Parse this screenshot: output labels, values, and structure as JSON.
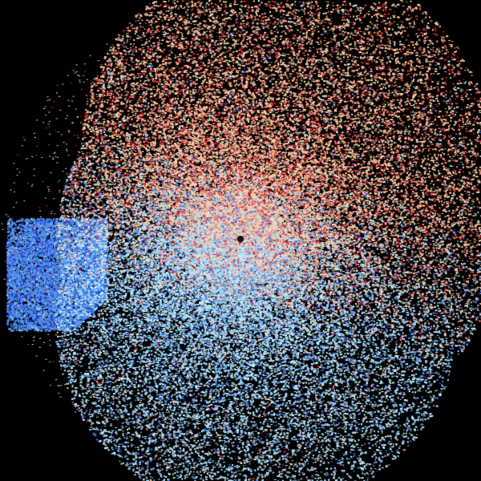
{
  "image": {
    "kind": "doppler-radar-velocity-sweep",
    "background": "#000000",
    "palette": {
      "inbound_strong": "#1f3fd8",
      "inbound": "#4f8cf0",
      "inbound_light": "#9fd8f8",
      "near_zero_light": "#c8f0ff",
      "outbound_light": "#ffd0a8",
      "outbound": "#f08868",
      "outbound_strong": "#e02838",
      "center_marker": "#111111"
    }
  }
}
